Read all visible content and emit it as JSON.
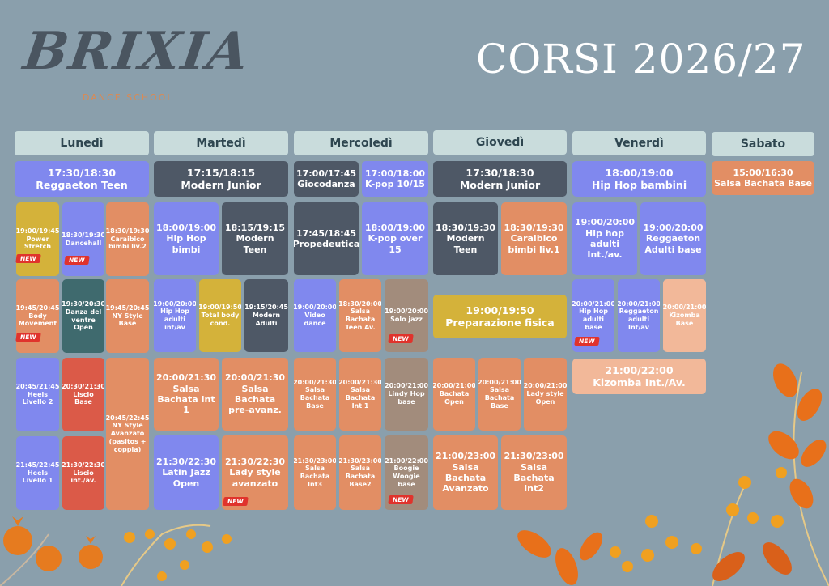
{
  "logo": {
    "word": "BRIXIA",
    "sub": "DANCE SCHOOL"
  },
  "title": "CORSI 2026/27",
  "badge": "NEW",
  "colors": {
    "background": "#8a9fac",
    "day_header": "#c9dcdc",
    "blue": "#8088ee",
    "dark": "#4e5866",
    "orange": "#e28e64",
    "yellow": "#d4b23a",
    "teal": "#3f6a6e",
    "red": "#db5a48",
    "taupe": "#a28c7c",
    "peach": "#f2b899",
    "new_badge": "#e0332c"
  },
  "days": [
    "Lunedì",
    "Martedì",
    "Mercoledì",
    "Giovedì",
    "Venerdì",
    "Sabato"
  ],
  "classes": {
    "c01": {
      "time": "17:30/18:30",
      "name": "Reggaeton Teen"
    },
    "c02": {
      "time": "19:00/19:45",
      "name": "Power Stretch"
    },
    "c03": {
      "time": "18:30/19:30",
      "name": "Dancehall"
    },
    "c04": {
      "time": "18:30/19:30",
      "name": "Caraibico bimbi liv.2"
    },
    "c05": {
      "time": "19:45/20:45",
      "name": "Body Movement"
    },
    "c06": {
      "time": "19:30/20:30",
      "name": "Danza del ventre Open"
    },
    "c07": {
      "time": "19:45/20:45",
      "name": "NY Style Base"
    },
    "c08": {
      "time": "20:45/21:45",
      "name": "Heels Livello 2"
    },
    "c09": {
      "time": "20:30/21:30",
      "name": "Liscio Base"
    },
    "c10": {
      "time": "20:45/22:45",
      "name": "NY Style Avanzato (pasitos + coppia)"
    },
    "c11": {
      "time": "21:45/22:45",
      "name": "Heels Livello 1"
    },
    "c12": {
      "time": "21:30/22:30",
      "name": "Liscio int./av."
    },
    "c13": {
      "time": "17:15/18:15",
      "name": "Modern Junior"
    },
    "c14": {
      "time": "18:00/19:00",
      "name": "Hip Hop bimbi"
    },
    "c15": {
      "time": "18:15/19:15",
      "name": "Modern Teen"
    },
    "c16": {
      "time": "19:00/20:00",
      "name": "Hip Hop adulti int/av"
    },
    "c17": {
      "time": "19:00/19:50",
      "name": "Total body cond."
    },
    "c18": {
      "time": "19:15/20:45",
      "name": "Modern Adulti"
    },
    "c19": {
      "time": "20:00/21:30",
      "name": "Salsa Bachata Int 1"
    },
    "c20": {
      "time": "20:00/21:30",
      "name": "Salsa Bachata pre-avanz."
    },
    "c21": {
      "time": "21:30/22:30",
      "name": "Latin Jazz Open"
    },
    "c22": {
      "time": "21:30/22:30",
      "name": "Lady style avanzato"
    },
    "c23": {
      "time": "17:00/17:45",
      "name": "Giocodanza"
    },
    "c24": {
      "time": "17:00/18:00",
      "name": "K-pop 10/15"
    },
    "c25": {
      "time": "17:45/18:45",
      "name": "Propedeutica"
    },
    "c26": {
      "time": "18:00/19:00",
      "name": "K-pop over 15"
    },
    "c27": {
      "time": "19:00/20:00",
      "name": "Video dance"
    },
    "c28": {
      "time": "18:30/20:00",
      "name": "Salsa Bachata Teen Av."
    },
    "c29": {
      "time": "19:00/20:00",
      "name": "Solo jazz"
    },
    "c30": {
      "time": "20:00/21:30",
      "name": "Salsa Bachata Base"
    },
    "c31": {
      "time": "20:00/21:30",
      "name": "Salsa Bachata Int 1"
    },
    "c32": {
      "time": "20:00/21:00",
      "name": "Lindy Hop base"
    },
    "c33": {
      "time": "21:30/23:00",
      "name": "Salsa Bachata Int3"
    },
    "c34": {
      "time": "21:30/23:00",
      "name": "Salsa Bachata Base2"
    },
    "c35": {
      "time": "21:00/22:00",
      "name": "Boogie Woogie base"
    },
    "c36": {
      "time": "17:30/18:30",
      "name": "Modern Junior"
    },
    "c37": {
      "time": "18:30/19:30",
      "name": "Modern Teen"
    },
    "c38": {
      "time": "18:30/19:30",
      "name": "Caraibico bimbi liv.1"
    },
    "c39": {
      "time": "19:00/19:50",
      "name": "Preparazione fisica"
    },
    "c40": {
      "time": "20:00/21:00",
      "name": "Bachata Open"
    },
    "c41": {
      "time": "20:00/21:00",
      "name": "Salsa Bachata Base"
    },
    "c42": {
      "time": "20:00/21:00",
      "name": "Lady style Open"
    },
    "c43": {
      "time": "21:00/23:00",
      "name": "Salsa Bachata Avanzato"
    },
    "c44": {
      "time": "21:30/23:00",
      "name": "Salsa Bachata Int2"
    },
    "c45": {
      "time": "18:00/19:00",
      "name": "Hip Hop bambini"
    },
    "c46": {
      "time": "19:00/20:00",
      "name": "Hip hop adulti Int./av."
    },
    "c47": {
      "time": "19:00/20:00",
      "name": "Reggaeton Adulti base"
    },
    "c48": {
      "time": "20:00/21:00",
      "name": "Hip Hop adulti base"
    },
    "c49": {
      "time": "20:00/21:00",
      "name": "Reggaeton adulti Int/av"
    },
    "c50": {
      "time": "20:00/21:00",
      "name": "Kizomba Base"
    },
    "c51": {
      "time": "21:00/22:00",
      "name": "Kizomba Int./Av."
    },
    "c52": {
      "time": "15:00/16:30",
      "name": "Salsa Bachata Base"
    }
  }
}
